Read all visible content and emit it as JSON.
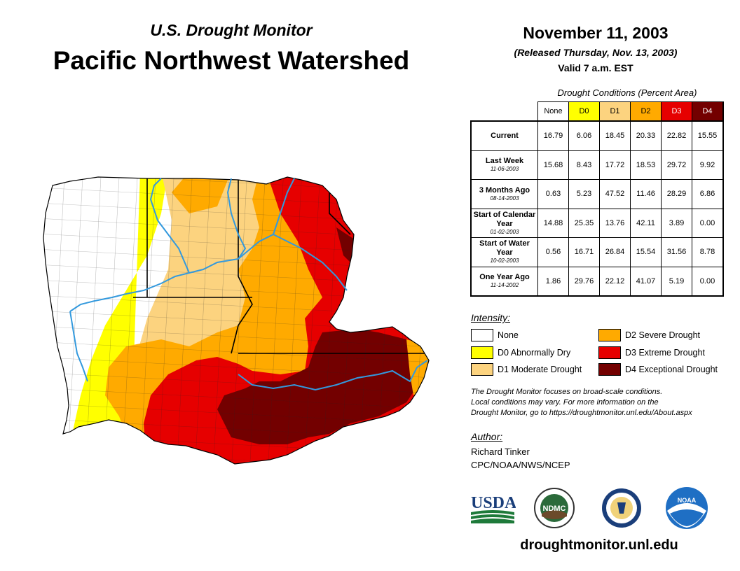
{
  "header": {
    "subtitle": "U.S. Drought Monitor",
    "title": "Pacific Northwest Watershed",
    "date": "November 11, 2003",
    "released": "(Released Thursday, Nov. 13, 2003)",
    "valid": "Valid 7 a.m. EST"
  },
  "table": {
    "caption": "Drought Conditions (Percent Area)",
    "columns": [
      "None",
      "D0",
      "D1",
      "D2",
      "D3",
      "D4"
    ],
    "rows": [
      {
        "label": "Current",
        "date": "",
        "values": [
          "16.79",
          "6.06",
          "18.45",
          "20.33",
          "22.82",
          "15.55"
        ]
      },
      {
        "label": "Last Week",
        "date": "11-06-2003",
        "values": [
          "15.68",
          "8.43",
          "17.72",
          "18.53",
          "29.72",
          "9.92"
        ]
      },
      {
        "label": "3 Months Ago",
        "date": "08-14-2003",
        "values": [
          "0.63",
          "5.23",
          "47.52",
          "11.46",
          "28.29",
          "6.86"
        ]
      },
      {
        "label": "Start of Calendar Year",
        "date": "01-02-2003",
        "values": [
          "14.88",
          "25.35",
          "13.76",
          "42.11",
          "3.89",
          "0.00"
        ]
      },
      {
        "label": "Start of Water Year",
        "date": "10-02-2003",
        "values": [
          "0.56",
          "16.71",
          "26.84",
          "15.54",
          "31.56",
          "8.78"
        ]
      },
      {
        "label": "One Year Ago",
        "date": "11-14-2002",
        "values": [
          "1.86",
          "29.76",
          "22.12",
          "41.07",
          "5.19",
          "0.00"
        ]
      }
    ]
  },
  "legend": {
    "title": "Intensity:",
    "items": [
      {
        "label": "None",
        "color": "#ffffff"
      },
      {
        "label": "D0 Abnormally Dry",
        "color": "#ffff00"
      },
      {
        "label": "D1 Moderate Drought",
        "color": "#fcd37f"
      },
      {
        "label": "D2 Severe Drought",
        "color": "#ffaa00"
      },
      {
        "label": "D3 Extreme Drought",
        "color": "#e60000"
      },
      {
        "label": "D4 Exceptional Drought",
        "color": "#730000"
      }
    ]
  },
  "note": {
    "line1": "The Drought Monitor focuses on broad-scale conditions.",
    "line2": "Local conditions may vary. For more information on the",
    "line3": "Drought Monitor, go to https://droughtmonitor.unl.edu/About.aspx"
  },
  "author": {
    "title": "Author:",
    "name": "Richard Tinker",
    "org": "CPC/NOAA/NWS/NCEP"
  },
  "logos": {
    "usda": "USDA",
    "ndmc": "NDMC",
    "noaa": "NOAA"
  },
  "footer": {
    "url": "droughtmonitor.unl.edu"
  },
  "colors": {
    "river": "#3399dd",
    "county": "#222222"
  }
}
